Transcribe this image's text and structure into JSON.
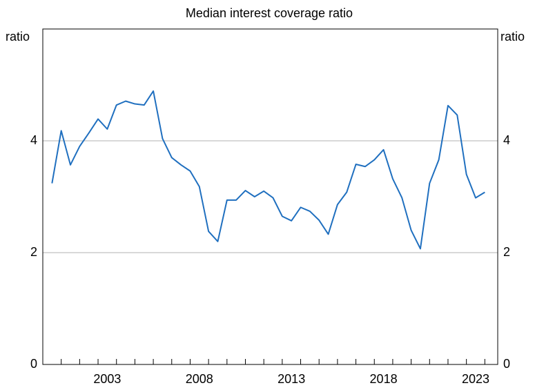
{
  "chart_data": {
    "type": "line",
    "subtitle": "Median interest coverage ratio",
    "ylabel": "ratio",
    "y2label": "ratio",
    "x": [
      2000.5,
      2001,
      2001.5,
      2002,
      2002.5,
      2003,
      2003.5,
      2004,
      2004.5,
      2005,
      2005.5,
      2006,
      2006.5,
      2007,
      2007.5,
      2008,
      2008.5,
      2009,
      2009.5,
      2010,
      2010.5,
      2011,
      2011.5,
      2012,
      2012.5,
      2013,
      2013.5,
      2014,
      2014.5,
      2015,
      2015.5,
      2016,
      2016.5,
      2017,
      2017.5,
      2018,
      2018.5,
      2019,
      2019.5,
      2020,
      2020.5,
      2021,
      2021.5,
      2022,
      2022.5,
      2023,
      2023.5,
      2024
    ],
    "series": [
      {
        "color": "#1f6fbf",
        "values": [
          3.24,
          4.18,
          3.57,
          3.9,
          4.14,
          4.39,
          4.21,
          4.64,
          4.71,
          4.66,
          4.64,
          4.89,
          4.04,
          3.7,
          3.57,
          3.46,
          3.18,
          2.38,
          2.2,
          2.94,
          2.94,
          3.11,
          3.0,
          3.1,
          2.98,
          2.65,
          2.57,
          2.81,
          2.74,
          2.58,
          2.33,
          2.86,
          3.08,
          3.58,
          3.54,
          3.66,
          3.84,
          3.32,
          2.98,
          2.4,
          2.07,
          3.24,
          3.66,
          4.63,
          4.46,
          3.4,
          2.98,
          3.08
        ]
      }
    ],
    "xlim": [
      2000,
      2024.7
    ],
    "xticks": [
      {
        "value": 2003.5,
        "label": "2003"
      },
      {
        "value": 2008.5,
        "label": "2008"
      },
      {
        "value": 2013.5,
        "label": "2013"
      },
      {
        "value": 2018.5,
        "label": "2018"
      },
      {
        "value": 2023.5,
        "label": "2023"
      }
    ],
    "xminorticks": [
      2001,
      2002,
      2003,
      2004,
      2005,
      2006,
      2007,
      2008,
      2009,
      2010,
      2011,
      2012,
      2013,
      2014,
      2015,
      2016,
      2017,
      2018,
      2019,
      2020,
      2021,
      2022,
      2023,
      2024
    ],
    "ylim": [
      0,
      6
    ],
    "yticks": [
      0,
      2,
      4
    ],
    "grid": true
  }
}
